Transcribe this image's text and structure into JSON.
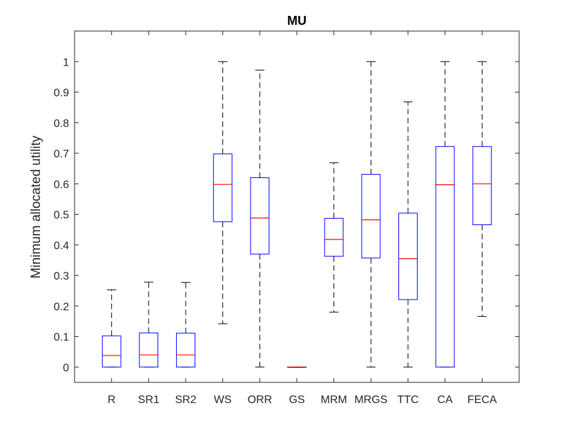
{
  "chart_data": {
    "type": "box",
    "title": "MU",
    "xlabel": "",
    "ylabel": "Minimum allocated utility",
    "ylim": [
      -0.05,
      1.1
    ],
    "yticks": [
      "0",
      "0.1",
      "0.2",
      "0.3",
      "0.4",
      "0.5",
      "0.6",
      "0.7",
      "0.8",
      "0.9",
      "1"
    ],
    "categories": [
      "R",
      "SR1",
      "SR2",
      "WS",
      "ORR",
      "GS",
      "MRM",
      "MRGS",
      "TTC",
      "CA",
      "FECA"
    ],
    "boxes": [
      {
        "min": 0.0,
        "q1": 0.0,
        "median": 0.038,
        "q3": 0.102,
        "max": 0.253
      },
      {
        "min": 0.0,
        "q1": 0.0,
        "median": 0.04,
        "q3": 0.112,
        "max": 0.278
      },
      {
        "min": 0.0,
        "q1": 0.0,
        "median": 0.04,
        "q3": 0.111,
        "max": 0.277
      },
      {
        "min": 0.142,
        "q1": 0.476,
        "median": 0.598,
        "q3": 0.698,
        "max": 1.0
      },
      {
        "min": 0.0,
        "q1": 0.37,
        "median": 0.488,
        "q3": 0.62,
        "max": 0.972
      },
      {
        "min": 0.0,
        "q1": 0.0,
        "median": 0.0,
        "q3": 0.0,
        "max": 0.0
      },
      {
        "min": 0.18,
        "q1": 0.363,
        "median": 0.418,
        "q3": 0.487,
        "max": 0.669
      },
      {
        "min": 0.0,
        "q1": 0.357,
        "median": 0.482,
        "q3": 0.631,
        "max": 1.0
      },
      {
        "min": 0.0,
        "q1": 0.221,
        "median": 0.355,
        "q3": 0.504,
        "max": 0.868
      },
      {
        "min": 0.0,
        "q1": 0.0,
        "median": 0.597,
        "q3": 0.722,
        "max": 1.0
      },
      {
        "min": 0.166,
        "q1": 0.466,
        "median": 0.6,
        "q3": 0.722,
        "max": 1.0
      }
    ],
    "grid": false,
    "colors": {
      "box": "#0000ff",
      "median": "#ff0000",
      "whisker": "#000000",
      "axis": "#262626"
    }
  }
}
